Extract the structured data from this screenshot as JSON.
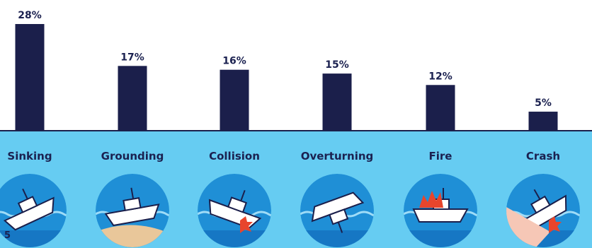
{
  "page_number": "5",
  "colors": {
    "bar": "#1b1f4b",
    "water": "#66ccf2",
    "circle": "#1f8fd6",
    "text": "#1b2150"
  },
  "chart_data": {
    "type": "bar",
    "title": "",
    "xlabel": "",
    "ylabel": "",
    "ylim": [
      0,
      28
    ],
    "grid": false,
    "categories": [
      "Sinking",
      "Grounding",
      "Collision",
      "Overturning",
      "Fire",
      "Crash"
    ],
    "values": [
      28,
      17,
      16,
      15,
      12,
      5
    ],
    "value_labels": [
      "28%",
      "17%",
      "16%",
      "15%",
      "12%",
      "5%"
    ],
    "icons": [
      "sinking-boat-icon",
      "grounded-boat-icon",
      "collision-boats-icon",
      "overturned-boat-icon",
      "burning-boat-icon",
      "crash-boat-icon"
    ]
  }
}
